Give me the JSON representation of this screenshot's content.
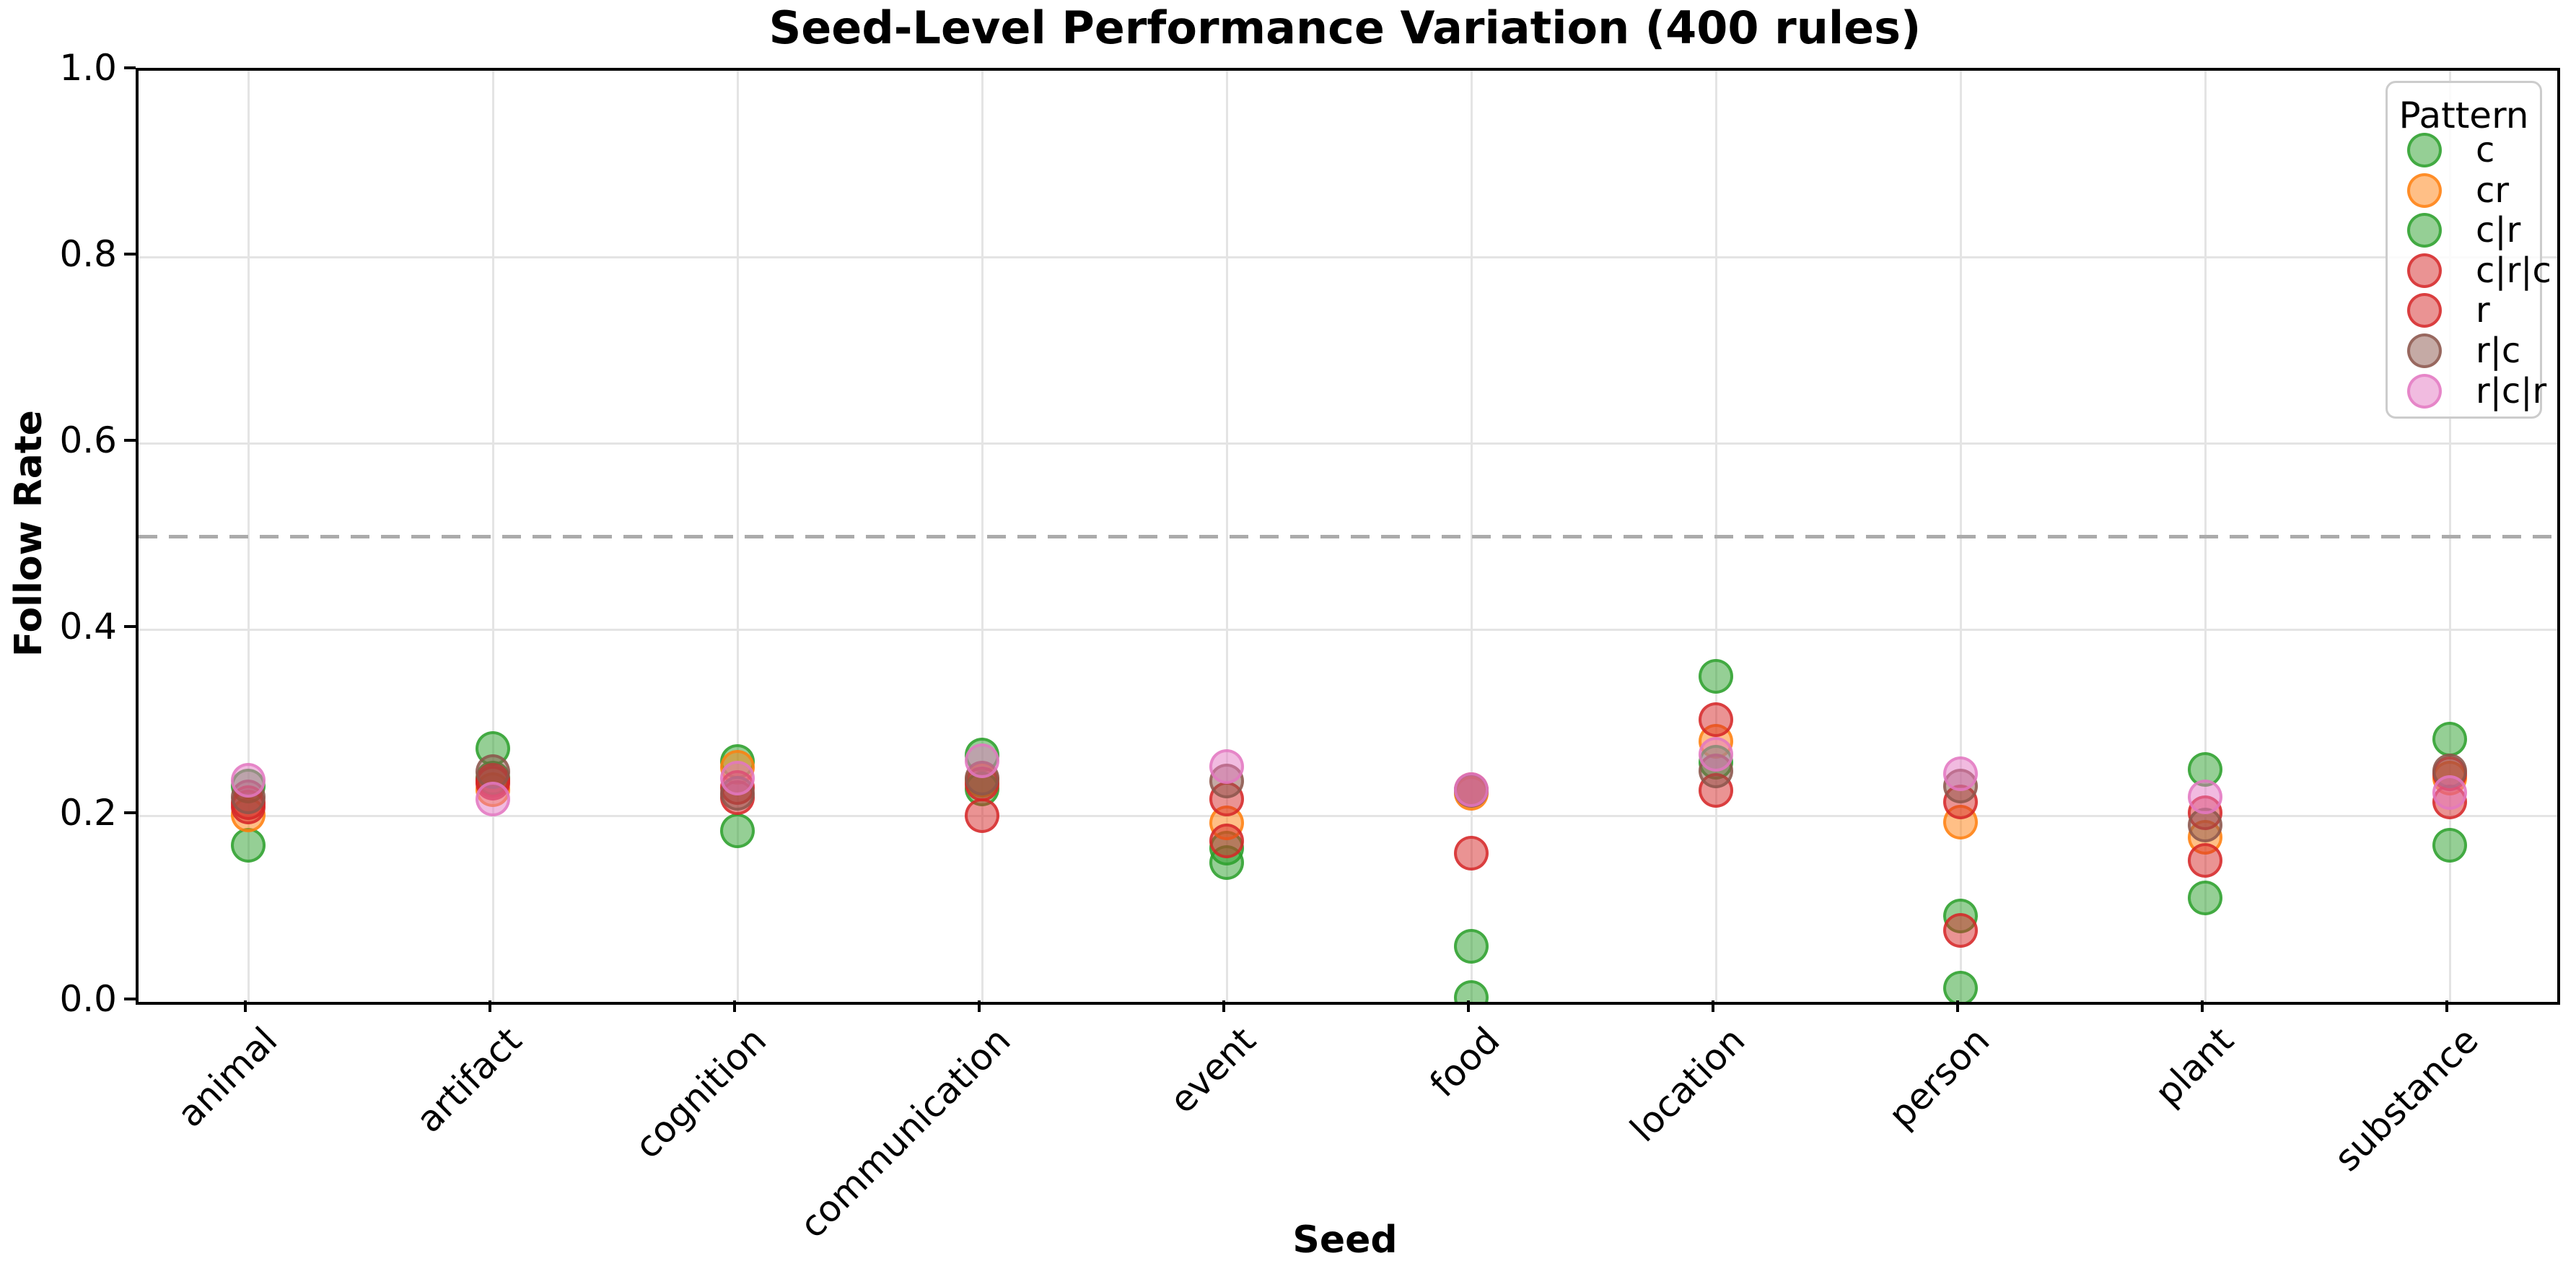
{
  "chart_data": {
    "type": "scatter",
    "title": "Seed-Level Performance Variation (400 rules)",
    "xlabel": "Seed",
    "ylabel": "Follow Rate",
    "ylim": [
      0.0,
      1.0
    ],
    "yticks": [
      "0.0",
      "0.2",
      "0.4",
      "0.6",
      "0.8",
      "1.0"
    ],
    "grid": true,
    "reference_line": {
      "y": 0.5,
      "style": "dashed",
      "color": "#ababab"
    },
    "legend": {
      "title": "Pattern",
      "position": "upper-right"
    },
    "categories": [
      "animal",
      "artifact",
      "cognition",
      "communication",
      "event",
      "food",
      "location",
      "person",
      "plant",
      "substance"
    ],
    "series": [
      {
        "name": "c",
        "color": "#2ca02c",
        "values": [
          0.168,
          0.272,
          0.258,
          0.265,
          0.165,
          0.06,
          0.35,
          0.092,
          0.25,
          0.282
        ]
      },
      {
        "name": "cr",
        "color": "#ff7f0e",
        "values": [
          0.201,
          0.228,
          0.252,
          0.238,
          0.192,
          0.224,
          0.28,
          0.193,
          0.177,
          0.24
        ]
      },
      {
        "name": "c|r",
        "color": "#2ca02c",
        "values": [
          0.232,
          0.24,
          0.184,
          0.229,
          0.15,
          0.005,
          0.257,
          0.015,
          0.112,
          0.168
        ]
      },
      {
        "name": "c|r|c",
        "color": "#d62728",
        "values": [
          0.214,
          0.238,
          0.23,
          0.234,
          0.218,
          0.228,
          0.227,
          0.215,
          0.203,
          0.245
        ]
      },
      {
        "name": "r",
        "color": "#d62728",
        "values": [
          0.209,
          0.235,
          0.219,
          0.2,
          0.173,
          0.16,
          0.303,
          0.077,
          0.152,
          0.215
        ]
      },
      {
        "name": "r|c",
        "color": "#8c564b",
        "values": [
          0.22,
          0.247,
          0.224,
          0.24,
          0.237,
          0.227,
          0.248,
          0.232,
          0.19,
          0.248
        ]
      },
      {
        "name": "r|c|r",
        "color": "#e377c2",
        "values": [
          0.238,
          0.218,
          0.24,
          0.259,
          0.253,
          0.228,
          0.266,
          0.245,
          0.22,
          0.225
        ]
      }
    ]
  }
}
